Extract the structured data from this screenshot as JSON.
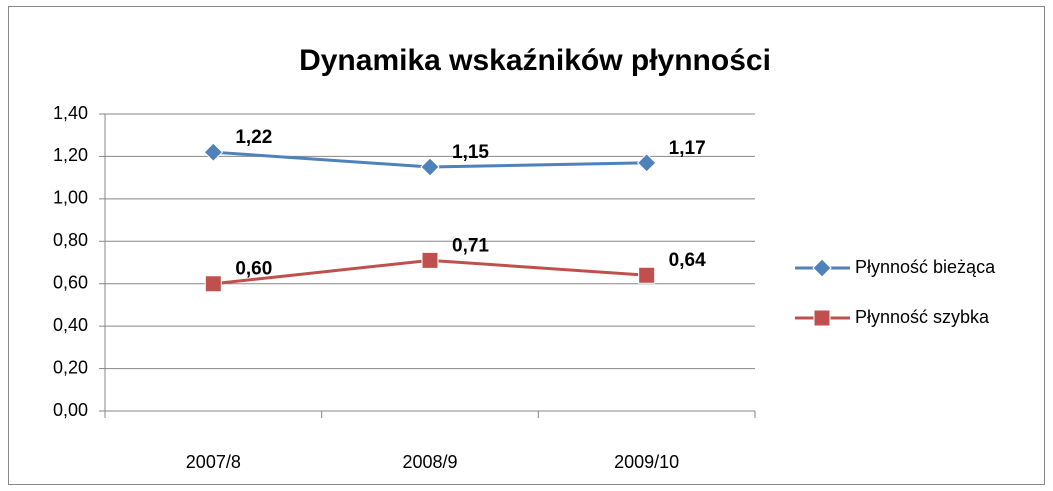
{
  "chart_data": {
    "type": "line",
    "title": "Dynamika wskaźników płynności",
    "categories": [
      "2007/8",
      "2008/9",
      "2009/10"
    ],
    "series": [
      {
        "name": "Płynność bieżąca",
        "color": "#4f81bd",
        "marker": "diamond",
        "values": [
          1.22,
          1.15,
          1.17
        ],
        "value_labels": [
          "1,22",
          "1,15",
          "1,17"
        ]
      },
      {
        "name": "Płynność szybka",
        "color": "#c0504d",
        "marker": "square",
        "values": [
          0.6,
          0.71,
          0.64
        ],
        "value_labels": [
          "0,60",
          "0,71",
          "0,64"
        ]
      }
    ],
    "ylim": [
      0,
      1.4
    ],
    "yticks": [
      {
        "value": 0,
        "label": "0,00"
      },
      {
        "value": 0.2,
        "label": "0,20"
      },
      {
        "value": 0.4,
        "label": "0,40"
      },
      {
        "value": 0.6,
        "label": "0,60"
      },
      {
        "value": 0.8,
        "label": "0,80"
      },
      {
        "value": 1.0,
        "label": "1,00"
      },
      {
        "value": 1.2,
        "label": "1,20"
      },
      {
        "value": 1.4,
        "label": "1,40"
      }
    ],
    "grid": true,
    "legend": "right"
  }
}
